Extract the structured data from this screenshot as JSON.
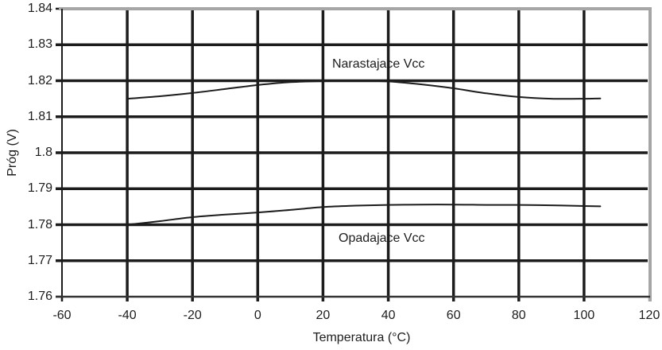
{
  "chart_data": {
    "type": "line",
    "title": "",
    "xlabel": "Temperatura (°C)",
    "ylabel": "Próg (V)",
    "xlim": [
      -60,
      120
    ],
    "ylim": [
      1.76,
      1.84
    ],
    "grid": true,
    "legend_position": "inline-annotations",
    "x_ticks": [
      -60,
      -40,
      -20,
      0,
      20,
      40,
      60,
      80,
      100,
      120
    ],
    "x_tick_labels": [
      "-60",
      "-40",
      "-20",
      "0",
      "20",
      "40",
      "60",
      "80",
      "100",
      "120"
    ],
    "y_ticks": [
      1.76,
      1.77,
      1.78,
      1.79,
      1.8,
      1.81,
      1.82,
      1.83,
      1.84
    ],
    "y_tick_labels": [
      "1.76",
      "1.77",
      "1.78",
      "1.79",
      "1.8",
      "1.81",
      "1.82",
      "1.83",
      "1.84"
    ],
    "series": [
      {
        "name": "Narastajace Vcc",
        "x": [
          -40,
          -30,
          -20,
          -10,
          0,
          10,
          20,
          30,
          40,
          50,
          60,
          70,
          80,
          90,
          100,
          105
        ],
        "y": [
          1.815,
          1.8157,
          1.8166,
          1.8177,
          1.8188,
          1.8196,
          1.8199,
          1.82,
          1.8198,
          1.819,
          1.8179,
          1.8165,
          1.8155,
          1.815,
          1.815,
          1.8151
        ]
      },
      {
        "name": "Opadajace Vcc",
        "x": [
          -40,
          -30,
          -20,
          -10,
          0,
          10,
          20,
          30,
          40,
          50,
          60,
          70,
          80,
          90,
          100,
          105
        ],
        "y": [
          1.78,
          1.781,
          1.7821,
          1.7828,
          1.7834,
          1.7841,
          1.7849,
          1.7853,
          1.7855,
          1.7856,
          1.7856,
          1.7855,
          1.7855,
          1.7854,
          1.7852,
          1.7851
        ]
      }
    ],
    "annotations": [
      {
        "text": "Narastajace Vcc",
        "x": 37,
        "y": 1.8245
      },
      {
        "text": "Opadajace Vcc",
        "x": 38,
        "y": 1.7761
      }
    ],
    "colors": {
      "grid": "#1c1c1c",
      "curve": "#1c1c1c",
      "outer_border": "#a6a6a6",
      "axis": "#333333",
      "text": "#1d1d1f",
      "background": "#ffffff"
    }
  }
}
